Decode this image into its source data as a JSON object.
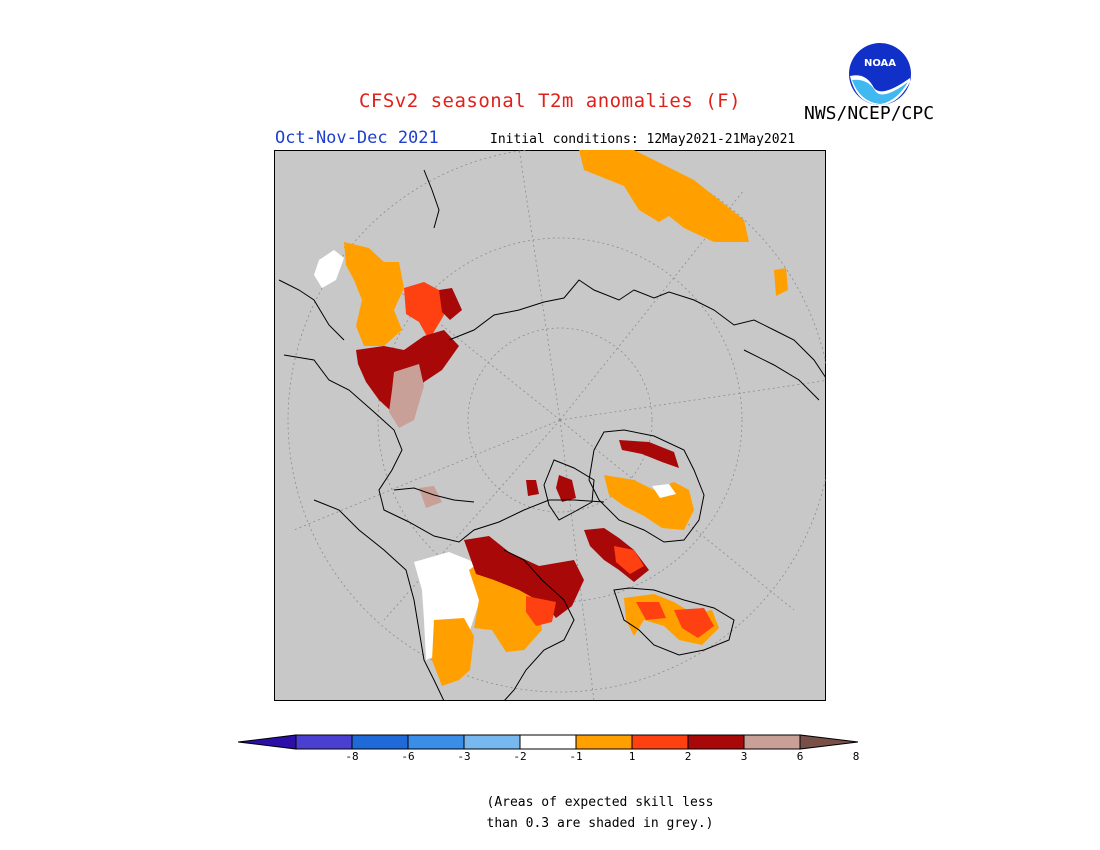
{
  "header": {
    "title": "CFSv2 seasonal T2m anomalies (F)",
    "organization": "NWS/NCEP/CPC",
    "season": "Oct-Nov-Dec 2021",
    "initial_conditions": "Initial conditions: 12May2021-21May2021",
    "logo_text": "NOAA"
  },
  "legend": {
    "colors": [
      "#2b0fa8",
      "#4a3fd0",
      "#1f6ad8",
      "#3a8ee8",
      "#78b8f0",
      "#ffffff",
      "#ffa000",
      "#ff4010",
      "#a80808",
      "#c8a098",
      "#785048"
    ],
    "tick_labels": [
      "-8",
      "-6",
      "-3",
      "-2",
      "-1",
      "1",
      "2",
      "3",
      "6",
      "8"
    ]
  },
  "note": {
    "line1": "(Areas of expected skill less",
    "line2": "than 0.3 are shaded in grey.)"
  },
  "map_colors": {
    "background": "#c8c8c8",
    "coast": "#000000",
    "grid": "#8c8c8c"
  }
}
